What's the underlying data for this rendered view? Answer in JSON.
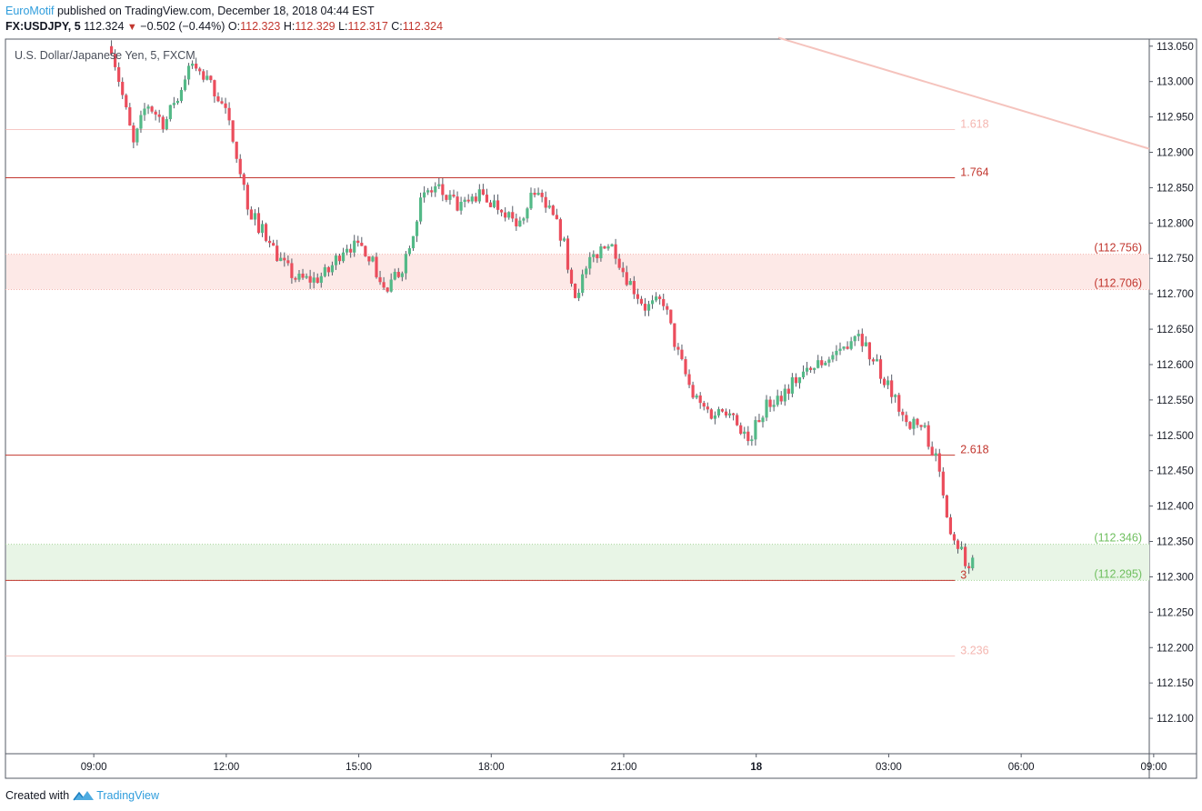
{
  "header": {
    "author": "EuroMotif",
    "published_text": "published on TradingView.com, December 18, 2018 04:44 EST",
    "symbol": "FX:USDJPY, 5",
    "last_price": "112.324",
    "change": "−0.502 (−0.44%)",
    "open_label": "O:",
    "open_value": "112.323",
    "high_label": "H:",
    "high_value": "112.329",
    "low_label": "L:",
    "low_value": "112.317",
    "close_label": "C:",
    "close_value": "112.324"
  },
  "footer": {
    "created_with": "Created with",
    "brand": "TradingView"
  },
  "colors": {
    "up_candle": "#53b987",
    "down_candle": "#eb4d5c",
    "fib_red": "#c2372f",
    "fib_faded": "#f4b6b0",
    "zone_red_fill": "#fde9e7",
    "zone_green_fill": "#e8f5e6",
    "zone_green_label": "#6fbf5f",
    "trendline": "#f5c3bd"
  },
  "chart_data": {
    "type": "candlestick",
    "title": "U.S. Dollar/Japanese Yen, 5, FXCM",
    "ylim": [
      112.05,
      113.06
    ],
    "y_ticks": [
      "113.050",
      "113.000",
      "112.950",
      "112.900",
      "112.850",
      "112.800",
      "112.750",
      "112.700",
      "112.650",
      "112.600",
      "112.550",
      "112.500",
      "112.450",
      "112.400",
      "112.350",
      "112.300",
      "112.250",
      "112.200",
      "112.150",
      "112.100"
    ],
    "x_range_hours": [
      7.0,
      32.9
    ],
    "x_ticks": [
      {
        "label": "09:00",
        "hour": 9,
        "bold": false
      },
      {
        "label": "12:00",
        "hour": 12,
        "bold": false
      },
      {
        "label": "15:00",
        "hour": 15,
        "bold": false
      },
      {
        "label": "18:00",
        "hour": 18,
        "bold": false
      },
      {
        "label": "21:00",
        "hour": 21,
        "bold": false
      },
      {
        "label": "18",
        "hour": 24,
        "bold": true
      },
      {
        "label": "03:00",
        "hour": 27,
        "bold": false
      },
      {
        "label": "06:00",
        "hour": 30,
        "bold": false
      },
      {
        "label": "09:00",
        "hour": 33,
        "bold": false
      }
    ],
    "fib_levels": [
      {
        "label": "1.618",
        "price": 112.932,
        "faded": true
      },
      {
        "label": "1.764",
        "price": 112.864,
        "faded": false
      },
      {
        "label": "2.618",
        "price": 112.472,
        "faded": false
      },
      {
        "label": "3",
        "price": 112.295,
        "faded": false
      },
      {
        "label": "3.236",
        "price": 112.188,
        "faded": true
      }
    ],
    "zones": [
      {
        "kind": "red",
        "top_label": "(112.756)",
        "top": 112.756,
        "bottom_label": "(112.706)",
        "bottom": 112.706
      },
      {
        "kind": "green",
        "top_label": "(112.346)",
        "top": 112.346,
        "bottom_label": "(112.295)",
        "bottom": 112.295
      }
    ],
    "trendline": {
      "start": {
        "hour": 24.5,
        "price": 113.062
      },
      "end": {
        "hour": 32.9,
        "price": 112.905
      }
    },
    "path": [
      [
        9.4,
        113.05
      ],
      [
        9.9,
        112.91
      ],
      [
        10.2,
        112.97
      ],
      [
        10.6,
        112.94
      ],
      [
        11.2,
        113.02
      ],
      [
        11.6,
        113.0
      ],
      [
        11.9,
        112.97
      ],
      [
        12.2,
        112.91
      ],
      [
        12.5,
        112.82
      ],
      [
        12.9,
        112.78
      ],
      [
        13.3,
        112.74
      ],
      [
        13.6,
        112.72
      ],
      [
        14.0,
        112.72
      ],
      [
        14.3,
        112.73
      ],
      [
        14.7,
        112.77
      ],
      [
        15.2,
        112.76
      ],
      [
        15.6,
        112.7
      ],
      [
        16.0,
        112.74
      ],
      [
        16.4,
        112.83
      ],
      [
        16.7,
        112.85
      ],
      [
        17.3,
        112.82
      ],
      [
        17.7,
        112.84
      ],
      [
        18.3,
        112.82
      ],
      [
        18.6,
        112.79
      ],
      [
        18.9,
        112.84
      ],
      [
        19.3,
        112.82
      ],
      [
        19.6,
        112.78
      ],
      [
        19.9,
        112.7
      ],
      [
        20.3,
        112.75
      ],
      [
        20.7,
        112.78
      ],
      [
        21.0,
        112.73
      ],
      [
        21.5,
        112.68
      ],
      [
        21.9,
        112.69
      ],
      [
        22.2,
        112.62
      ],
      [
        22.6,
        112.55
      ],
      [
        23.0,
        112.53
      ],
      [
        23.4,
        112.54
      ],
      [
        23.8,
        112.49
      ],
      [
        24.2,
        112.54
      ],
      [
        24.6,
        112.56
      ],
      [
        24.9,
        112.58
      ],
      [
        25.4,
        112.6
      ],
      [
        25.9,
        112.62
      ],
      [
        26.3,
        112.65
      ],
      [
        26.6,
        112.61
      ],
      [
        27.0,
        112.57
      ],
      [
        27.4,
        112.52
      ],
      [
        27.8,
        112.51
      ],
      [
        28.1,
        112.46
      ],
      [
        28.4,
        112.37
      ],
      [
        28.6,
        112.34
      ],
      [
        28.8,
        112.31
      ],
      [
        28.95,
        112.324
      ]
    ]
  }
}
